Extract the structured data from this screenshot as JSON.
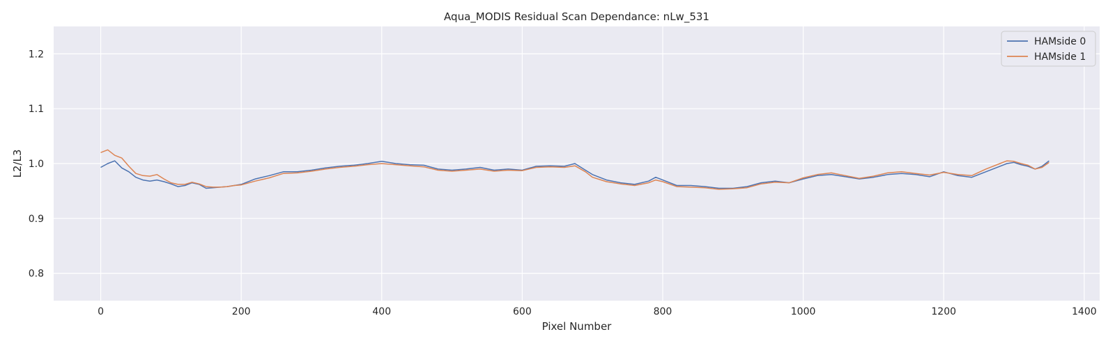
{
  "chart_data": {
    "type": "line",
    "title": "Aqua_MODIS Residual Scan Dependance: nLw_531",
    "xlabel": "Pixel Number",
    "ylabel": "L2/L3",
    "xlim": [
      -67,
      1422
    ],
    "ylim": [
      0.75,
      1.25
    ],
    "x_ticks": [
      0,
      200,
      400,
      600,
      800,
      1000,
      1200,
      1400
    ],
    "x_tick_labels": [
      "0",
      "200",
      "400",
      "600",
      "800",
      "1000",
      "1200",
      "1400"
    ],
    "y_ticks": [
      0.8,
      0.9,
      1.0,
      1.1,
      1.2
    ],
    "y_tick_labels": [
      "0.8",
      "0.9",
      "1.0",
      "1.1",
      "1.2"
    ],
    "grid": true,
    "legend_position": "top-right",
    "colors": {
      "background": "#eaeaf2",
      "grid": "#ffffff",
      "hamside0": "#4c72b0",
      "hamside1": "#dd8452"
    },
    "x": [
      0,
      10,
      20,
      30,
      40,
      50,
      60,
      70,
      80,
      90,
      100,
      110,
      120,
      130,
      140,
      150,
      160,
      170,
      180,
      190,
      200,
      220,
      240,
      260,
      280,
      300,
      320,
      340,
      360,
      380,
      400,
      420,
      440,
      460,
      480,
      500,
      520,
      540,
      560,
      580,
      600,
      620,
      640,
      660,
      675,
      690,
      700,
      720,
      740,
      760,
      780,
      790,
      800,
      820,
      840,
      860,
      880,
      900,
      920,
      940,
      960,
      980,
      1000,
      1020,
      1040,
      1060,
      1080,
      1100,
      1120,
      1140,
      1160,
      1180,
      1200,
      1220,
      1240,
      1260,
      1280,
      1290,
      1300,
      1310,
      1320,
      1330,
      1340,
      1350
    ],
    "series": [
      {
        "name": "HAMside 0",
        "color": "#4c72b0",
        "values": [
          0.993,
          1.0,
          1.005,
          0.992,
          0.985,
          0.975,
          0.97,
          0.968,
          0.97,
          0.967,
          0.963,
          0.958,
          0.96,
          0.965,
          0.962,
          0.955,
          0.956,
          0.957,
          0.958,
          0.96,
          0.962,
          0.972,
          0.978,
          0.985,
          0.985,
          0.988,
          0.992,
          0.995,
          0.997,
          1.0,
          1.004,
          1.0,
          0.998,
          0.997,
          0.99,
          0.988,
          0.99,
          0.993,
          0.988,
          0.99,
          0.988,
          0.995,
          0.996,
          0.995,
          1.0,
          0.988,
          0.98,
          0.97,
          0.965,
          0.962,
          0.968,
          0.975,
          0.97,
          0.96,
          0.96,
          0.958,
          0.955,
          0.955,
          0.958,
          0.965,
          0.968,
          0.965,
          0.972,
          0.978,
          0.98,
          0.976,
          0.972,
          0.975,
          0.98,
          0.982,
          0.98,
          0.976,
          0.985,
          0.978,
          0.975,
          0.985,
          0.995,
          1.0,
          1.002,
          0.998,
          0.995,
          0.99,
          0.995,
          1.005
        ]
      },
      {
        "name": "HAMside 1",
        "color": "#dd8452",
        "values": [
          1.02,
          1.025,
          1.015,
          1.01,
          0.995,
          0.982,
          0.978,
          0.977,
          0.98,
          0.972,
          0.965,
          0.962,
          0.962,
          0.966,
          0.963,
          0.958,
          0.957,
          0.957,
          0.958,
          0.96,
          0.961,
          0.968,
          0.974,
          0.982,
          0.983,
          0.986,
          0.99,
          0.993,
          0.995,
          0.998,
          1.0,
          0.998,
          0.996,
          0.994,
          0.988,
          0.986,
          0.988,
          0.99,
          0.986,
          0.988,
          0.987,
          0.993,
          0.994,
          0.993,
          0.996,
          0.985,
          0.975,
          0.967,
          0.963,
          0.96,
          0.965,
          0.97,
          0.967,
          0.958,
          0.957,
          0.956,
          0.953,
          0.954,
          0.956,
          0.963,
          0.966,
          0.965,
          0.974,
          0.98,
          0.983,
          0.978,
          0.973,
          0.977,
          0.983,
          0.985,
          0.982,
          0.979,
          0.984,
          0.98,
          0.978,
          0.99,
          1.0,
          1.005,
          1.004,
          1.0,
          0.997,
          0.99,
          0.993,
          1.002
        ]
      }
    ]
  }
}
